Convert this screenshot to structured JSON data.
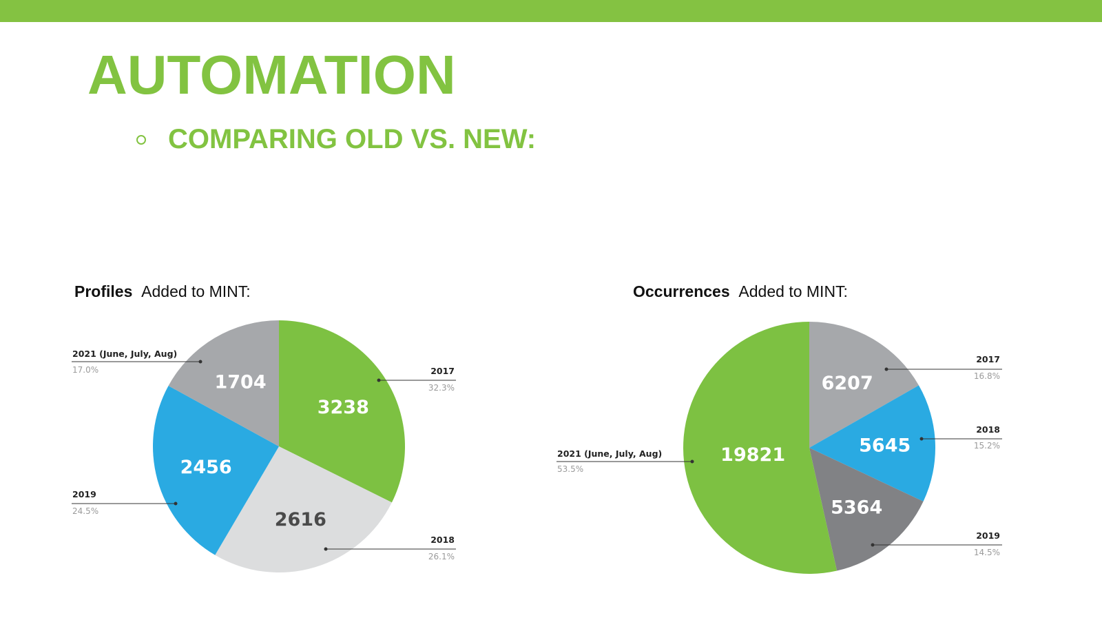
{
  "slide": {
    "title": "AUTOMATION",
    "subtitle": "COMPARING OLD VS. NEW:",
    "accent_color": "#82c341",
    "bullet_icon": "hollow-circle"
  },
  "chart_data": [
    {
      "type": "pie",
      "title_bold": "Profiles",
      "title_rest": "Added to MINT:",
      "slices": [
        {
          "label": "2017",
          "value": 3238,
          "percent": "32.3%",
          "color": "#7dc142",
          "value_color": "#ffffff"
        },
        {
          "label": "2018",
          "value": 2616,
          "percent": "26.1%",
          "color": "#dcddde",
          "value_color": "#4a4a4a"
        },
        {
          "label": "2019",
          "value": 2456,
          "percent": "24.5%",
          "color": "#2aaae2",
          "value_color": "#ffffff"
        },
        {
          "label": "2021 (June, July, Aug)",
          "value": 1704,
          "percent": "17.0%",
          "color": "#a6a8ab",
          "value_color": "#ffffff"
        }
      ]
    },
    {
      "type": "pie",
      "title_bold": "Occurrences",
      "title_rest": "Added to MINT:",
      "slices": [
        {
          "label": "2017",
          "value": 6207,
          "percent": "16.8%",
          "color": "#a6a8ab",
          "value_color": "#ffffff"
        },
        {
          "label": "2018",
          "value": 5645,
          "percent": "15.2%",
          "color": "#2aaae2",
          "value_color": "#ffffff"
        },
        {
          "label": "2019",
          "value": 5364,
          "percent": "14.5%",
          "color": "#818285",
          "value_color": "#ffffff"
        },
        {
          "label": "2021 (June, July, Aug)",
          "value": 19821,
          "percent": "53.5%",
          "color": "#7dc142",
          "value_color": "#ffffff"
        }
      ]
    }
  ]
}
